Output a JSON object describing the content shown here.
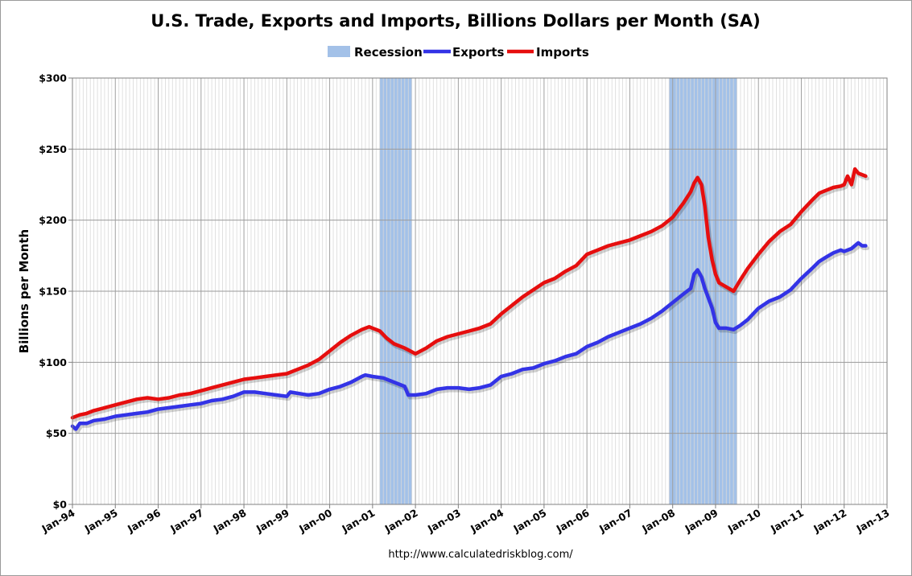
{
  "chart_data": {
    "type": "line",
    "title": "U.S. Trade, Exports and Imports, Billions Dollars per Month (SA)",
    "ylabel": "Billions per Month",
    "xlabel": "",
    "source": "http://www.calculatedriskblog.com/",
    "ylim": [
      0,
      300
    ],
    "y_ticks": [
      0,
      50,
      100,
      150,
      200,
      250,
      300
    ],
    "y_tick_labels": [
      "$0",
      "$50",
      "$100",
      "$150",
      "$200",
      "$250",
      "$300"
    ],
    "x_range_years": [
      1994.0,
      2013.0
    ],
    "x_tick_labels": [
      "Jan-94",
      "Jan-95",
      "Jan-96",
      "Jan-97",
      "Jan-98",
      "Jan-99",
      "Jan-00",
      "Jan-01",
      "Jan-02",
      "Jan-03",
      "Jan-04",
      "Jan-05",
      "Jan-06",
      "Jan-07",
      "Jan-08",
      "Jan-09",
      "Jan-10",
      "Jan-11",
      "Jan-12",
      "Jan-13"
    ],
    "grid": true,
    "legend_position": "top-center",
    "legend": [
      "Recession",
      "Exports",
      "Imports"
    ],
    "colors": {
      "recession": "#a3c1e8",
      "exports": "#3333e6",
      "imports": "#e60e0e"
    },
    "recessions": [
      {
        "start": 2001.17,
        "end": 2001.92
      },
      {
        "start": 2007.92,
        "end": 2009.5
      }
    ],
    "series": [
      {
        "name": "Exports",
        "points": [
          [
            1994.0,
            55
          ],
          [
            1994.08,
            53
          ],
          [
            1994.17,
            57
          ],
          [
            1994.33,
            57
          ],
          [
            1994.5,
            59
          ],
          [
            1994.75,
            60
          ],
          [
            1995.0,
            62
          ],
          [
            1995.25,
            63
          ],
          [
            1995.5,
            64
          ],
          [
            1995.75,
            65
          ],
          [
            1996.0,
            67
          ],
          [
            1996.25,
            68
          ],
          [
            1996.5,
            69
          ],
          [
            1996.75,
            70
          ],
          [
            1997.0,
            71
          ],
          [
            1997.25,
            73
          ],
          [
            1997.5,
            74
          ],
          [
            1997.75,
            76
          ],
          [
            1998.0,
            79
          ],
          [
            1998.25,
            79
          ],
          [
            1998.5,
            78
          ],
          [
            1998.75,
            77
          ],
          [
            1999.0,
            76
          ],
          [
            1999.08,
            79
          ],
          [
            1999.5,
            77
          ],
          [
            1999.75,
            78
          ],
          [
            2000.0,
            81
          ],
          [
            2000.25,
            83
          ],
          [
            2000.5,
            86
          ],
          [
            2000.75,
            90
          ],
          [
            2000.83,
            91
          ],
          [
            2001.0,
            90
          ],
          [
            2001.25,
            89
          ],
          [
            2001.5,
            86
          ],
          [
            2001.75,
            83
          ],
          [
            2001.83,
            77
          ],
          [
            2002.0,
            77
          ],
          [
            2002.25,
            78
          ],
          [
            2002.5,
            81
          ],
          [
            2002.75,
            82
          ],
          [
            2003.0,
            82
          ],
          [
            2003.25,
            81
          ],
          [
            2003.5,
            82
          ],
          [
            2003.75,
            84
          ],
          [
            2004.0,
            90
          ],
          [
            2004.25,
            92
          ],
          [
            2004.5,
            95
          ],
          [
            2004.75,
            96
          ],
          [
            2005.0,
            99
          ],
          [
            2005.25,
            101
          ],
          [
            2005.5,
            104
          ],
          [
            2005.75,
            106
          ],
          [
            2006.0,
            111
          ],
          [
            2006.25,
            114
          ],
          [
            2006.5,
            118
          ],
          [
            2006.75,
            121
          ],
          [
            2007.0,
            124
          ],
          [
            2007.25,
            127
          ],
          [
            2007.5,
            131
          ],
          [
            2007.75,
            136
          ],
          [
            2008.0,
            142
          ],
          [
            2008.25,
            148
          ],
          [
            2008.42,
            152
          ],
          [
            2008.5,
            162
          ],
          [
            2008.58,
            165
          ],
          [
            2008.67,
            160
          ],
          [
            2008.75,
            152
          ],
          [
            2008.92,
            138
          ],
          [
            2009.0,
            128
          ],
          [
            2009.08,
            124
          ],
          [
            2009.25,
            124
          ],
          [
            2009.42,
            123
          ],
          [
            2009.58,
            126
          ],
          [
            2009.75,
            130
          ],
          [
            2010.0,
            138
          ],
          [
            2010.25,
            143
          ],
          [
            2010.5,
            146
          ],
          [
            2010.75,
            151
          ],
          [
            2011.0,
            159
          ],
          [
            2011.25,
            166
          ],
          [
            2011.42,
            171
          ],
          [
            2011.58,
            174
          ],
          [
            2011.75,
            177
          ],
          [
            2011.92,
            179
          ],
          [
            2012.0,
            178
          ],
          [
            2012.17,
            180
          ],
          [
            2012.33,
            184
          ],
          [
            2012.42,
            182
          ],
          [
            2012.5,
            182
          ]
        ]
      },
      {
        "name": "Imports",
        "points": [
          [
            1994.0,
            61
          ],
          [
            1994.17,
            63
          ],
          [
            1994.33,
            64
          ],
          [
            1994.5,
            66
          ],
          [
            1994.75,
            68
          ],
          [
            1995.0,
            70
          ],
          [
            1995.25,
            72
          ],
          [
            1995.5,
            74
          ],
          [
            1995.75,
            75
          ],
          [
            1996.0,
            74
          ],
          [
            1996.25,
            75
          ],
          [
            1996.5,
            77
          ],
          [
            1996.75,
            78
          ],
          [
            1997.0,
            80
          ],
          [
            1997.25,
            82
          ],
          [
            1997.5,
            84
          ],
          [
            1997.75,
            86
          ],
          [
            1998.0,
            88
          ],
          [
            1998.25,
            89
          ],
          [
            1998.5,
            90
          ],
          [
            1998.75,
            91
          ],
          [
            1999.0,
            92
          ],
          [
            1999.25,
            95
          ],
          [
            1999.5,
            98
          ],
          [
            1999.75,
            102
          ],
          [
            2000.0,
            108
          ],
          [
            2000.25,
            114
          ],
          [
            2000.5,
            119
          ],
          [
            2000.75,
            123
          ],
          [
            2000.92,
            125
          ],
          [
            2001.0,
            124
          ],
          [
            2001.17,
            122
          ],
          [
            2001.33,
            117
          ],
          [
            2001.5,
            113
          ],
          [
            2001.75,
            110
          ],
          [
            2002.0,
            106
          ],
          [
            2002.25,
            110
          ],
          [
            2002.5,
            115
          ],
          [
            2002.75,
            118
          ],
          [
            2003.0,
            120
          ],
          [
            2003.25,
            122
          ],
          [
            2003.5,
            124
          ],
          [
            2003.75,
            127
          ],
          [
            2004.0,
            134
          ],
          [
            2004.25,
            140
          ],
          [
            2004.5,
            146
          ],
          [
            2004.75,
            151
          ],
          [
            2005.0,
            156
          ],
          [
            2005.25,
            159
          ],
          [
            2005.5,
            164
          ],
          [
            2005.75,
            168
          ],
          [
            2006.0,
            176
          ],
          [
            2006.25,
            179
          ],
          [
            2006.5,
            182
          ],
          [
            2006.75,
            184
          ],
          [
            2007.0,
            186
          ],
          [
            2007.25,
            189
          ],
          [
            2007.5,
            192
          ],
          [
            2007.75,
            196
          ],
          [
            2008.0,
            202
          ],
          [
            2008.25,
            212
          ],
          [
            2008.42,
            220
          ],
          [
            2008.5,
            226
          ],
          [
            2008.58,
            230
          ],
          [
            2008.67,
            225
          ],
          [
            2008.75,
            210
          ],
          [
            2008.83,
            188
          ],
          [
            2008.92,
            172
          ],
          [
            2009.0,
            162
          ],
          [
            2009.08,
            156
          ],
          [
            2009.25,
            153
          ],
          [
            2009.42,
            150
          ],
          [
            2009.58,
            158
          ],
          [
            2009.75,
            166
          ],
          [
            2010.0,
            176
          ],
          [
            2010.25,
            185
          ],
          [
            2010.5,
            192
          ],
          [
            2010.75,
            197
          ],
          [
            2011.0,
            206
          ],
          [
            2011.25,
            214
          ],
          [
            2011.42,
            219
          ],
          [
            2011.58,
            221
          ],
          [
            2011.75,
            223
          ],
          [
            2011.92,
            224
          ],
          [
            2012.0,
            225
          ],
          [
            2012.08,
            231
          ],
          [
            2012.17,
            225
          ],
          [
            2012.25,
            236
          ],
          [
            2012.33,
            233
          ],
          [
            2012.5,
            231
          ]
        ]
      }
    ]
  }
}
